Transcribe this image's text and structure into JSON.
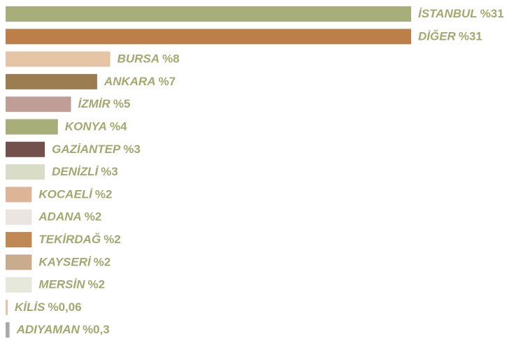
{
  "chart_data": {
    "type": "bar",
    "categories": [
      "İSTANBUL",
      "DİĞER",
      "BURSA",
      "ANKARA",
      "İZMİR",
      "KONYA",
      "GAZİANTEP",
      "DENİZLİ",
      "KOCAELİ",
      "ADANA",
      "TEKİRDAĞ",
      "KAYSERİ",
      "MERSİN",
      "KİLİS",
      "ADIYAMAN"
    ],
    "values": [
      31,
      31,
      8,
      7,
      5,
      4,
      3,
      3,
      2,
      2,
      2,
      2,
      2,
      0.06,
      0.3
    ],
    "value_labels": [
      "%31",
      "%31",
      "%8",
      "%7",
      "%5",
      "%4",
      "%3",
      "%3",
      "%2",
      "%2",
      "%2",
      "%2",
      "%2",
      "%0,06",
      "%0,3"
    ],
    "colors": [
      "#a8ae7a",
      "#bb7f47",
      "#e6c4a6",
      "#9c7d52",
      "#bf9e98",
      "#a8ae7a",
      "#74504d",
      "#d9dcc6",
      "#ddb596",
      "#ece4de",
      "#c08855",
      "#c9ab8e",
      "#e6e8dc",
      "#e6c4a6",
      "#a8a8ae"
    ]
  }
}
